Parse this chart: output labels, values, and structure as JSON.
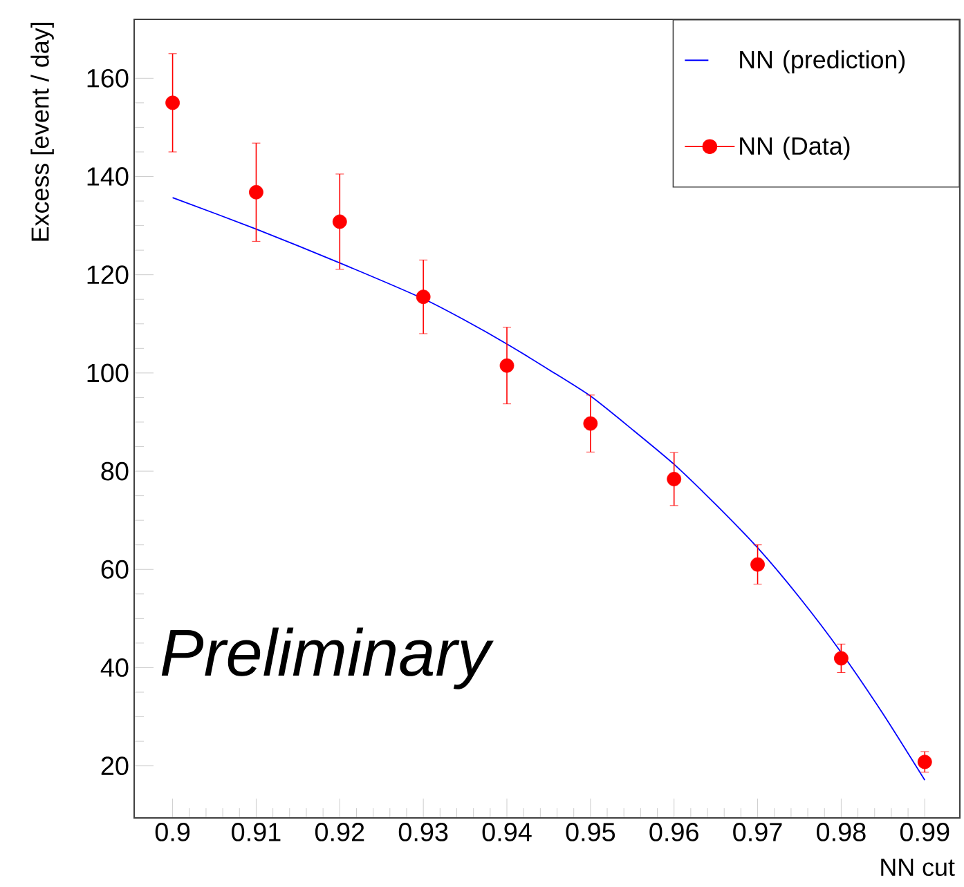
{
  "chart_data": {
    "type": "scatter",
    "xlabel": "NN cut",
    "ylabel": "Excess [event / day]",
    "xlim": [
      0.8954,
      0.9942
    ],
    "ylim": [
      9.4,
      172
    ],
    "xticks": [
      0.9,
      0.91,
      0.92,
      0.93,
      0.94,
      0.95,
      0.96,
      0.97,
      0.98,
      0.99
    ],
    "yticks": [
      20,
      40,
      60,
      80,
      100,
      120,
      140,
      160
    ],
    "legend": "top right",
    "grid": false,
    "annotations": [
      "Preliminary"
    ],
    "series": [
      {
        "name": "NN (prediction)",
        "type": "line",
        "color": "#0000ff",
        "marker": "none",
        "x": [
          0.9,
          0.91,
          0.92,
          0.93,
          0.935,
          0.94,
          0.945,
          0.95,
          0.955,
          0.96,
          0.965,
          0.97,
          0.975,
          0.98,
          0.985,
          0.99
        ],
        "values": [
          135.7,
          129.3,
          122.4,
          115.1,
          110.7,
          105.9,
          100.7,
          95.3,
          88.5,
          81.4,
          73.2,
          64.4,
          54.3,
          43.1,
          30.6,
          17.1
        ]
      },
      {
        "name": "NN (Data)",
        "color": "#ff0000",
        "marker": "circle",
        "x": [
          0.9,
          0.91,
          0.92,
          0.93,
          0.94,
          0.95,
          0.96,
          0.97,
          0.98,
          0.99
        ],
        "values": [
          155.0,
          136.8,
          130.8,
          115.5,
          101.5,
          89.7,
          78.4,
          61.0,
          41.9,
          20.8
        ],
        "errors": [
          10,
          10,
          9.7,
          7.5,
          7.8,
          5.8,
          5.4,
          4,
          2.9,
          2.1
        ]
      }
    ]
  }
}
